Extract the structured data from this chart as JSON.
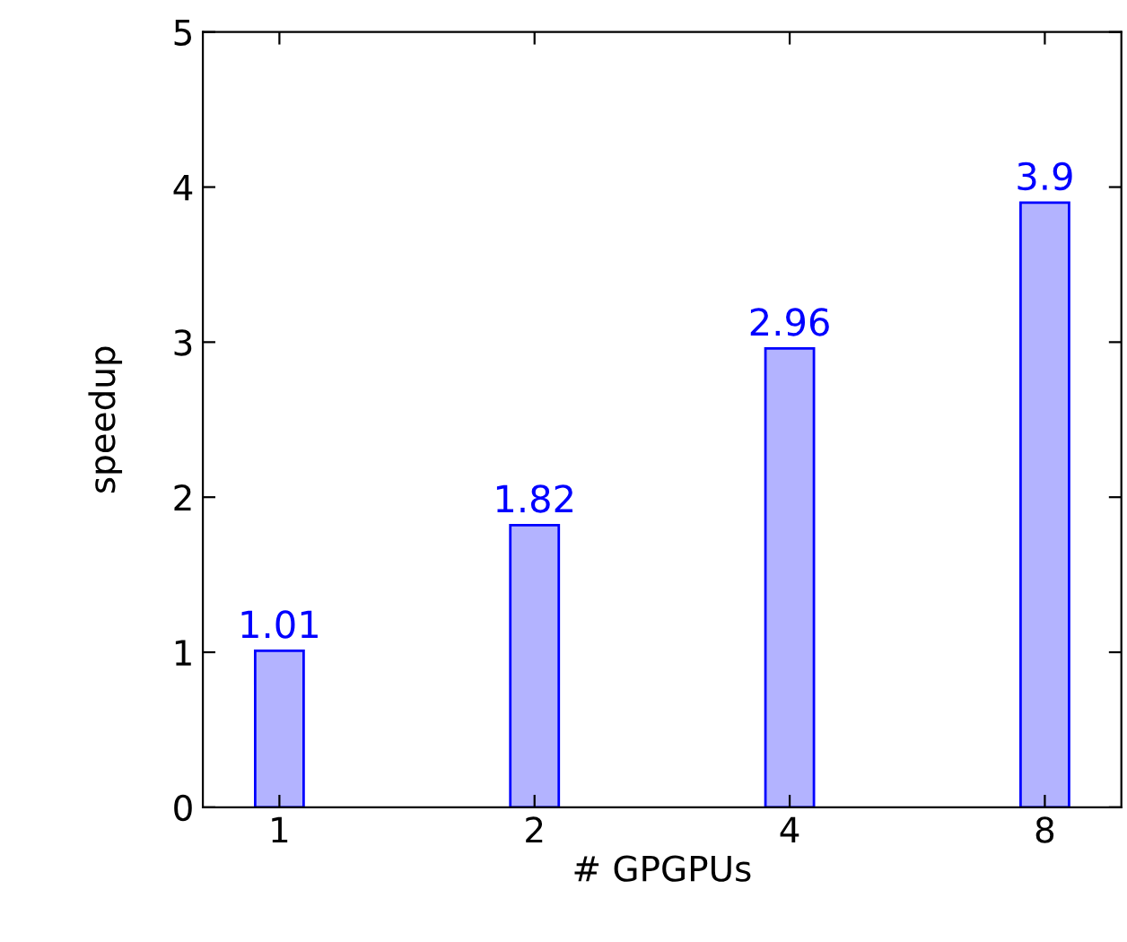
{
  "chart_data": {
    "type": "bar",
    "xlabel": "# GPGPUs",
    "ylabel": "speedup",
    "categories": [
      "1",
      "2",
      "4",
      "8"
    ],
    "values": [
      1.01,
      1.82,
      2.96,
      3.9
    ],
    "color": "#b3b3ff",
    "data_labels": true,
    "ylim": [
      0,
      5
    ],
    "yticks": [
      0,
      1,
      2,
      3,
      4,
      5
    ],
    "grid": false
  }
}
